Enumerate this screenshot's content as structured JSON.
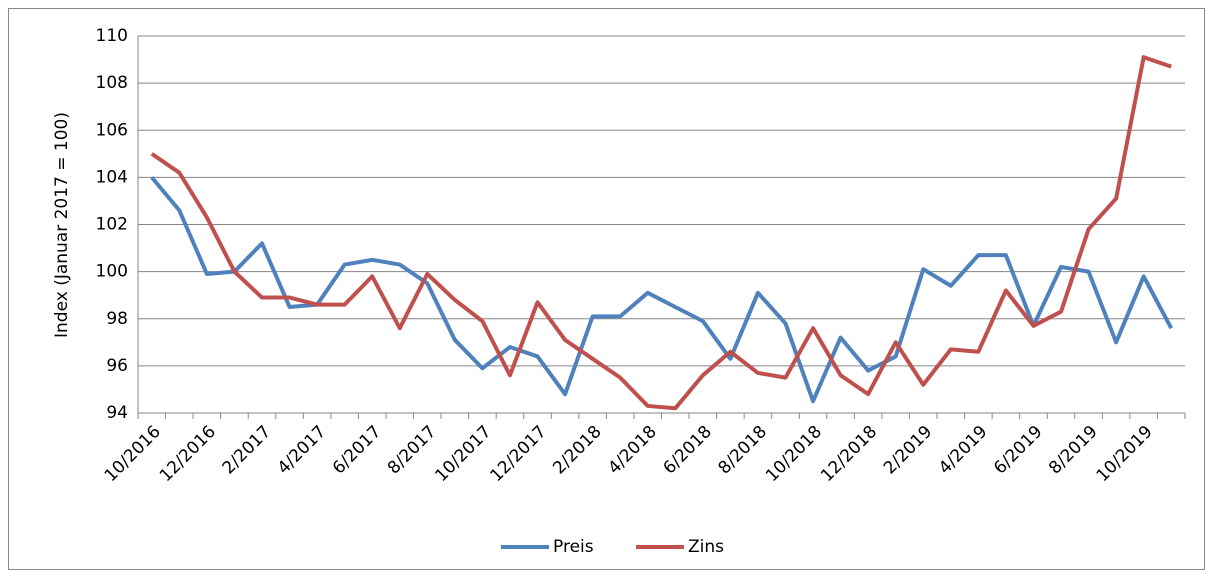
{
  "chart_data": {
    "type": "line",
    "y_label": "Index (Januar 2017 = 100)",
    "categories": [
      "10/2016",
      null,
      "12/2016",
      null,
      "2/2017",
      null,
      "4/2017",
      null,
      "6/2017",
      null,
      "8/2017",
      null,
      "10/2017",
      null,
      "12/2017",
      null,
      "2/2018",
      null,
      "4/2018",
      null,
      "6/2018",
      null,
      "8/2018",
      null,
      "10/2018",
      null,
      "12/2018",
      null,
      "2/2019",
      null,
      "4/2019",
      null,
      "6/2019",
      null,
      "8/2019",
      null,
      "10/2019",
      null
    ],
    "series": [
      {
        "name": "Preis",
        "color": "#4f81bd",
        "values": [
          104.0,
          102.6,
          99.9,
          100.0,
          101.2,
          98.5,
          98.6,
          100.3,
          100.5,
          100.3,
          99.5,
          97.1,
          95.9,
          96.8,
          96.4,
          94.8,
          98.1,
          98.1,
          99.1,
          98.5,
          97.9,
          96.3,
          99.1,
          97.8,
          94.5,
          97.2,
          95.8,
          96.4,
          100.1,
          99.4,
          100.7,
          100.7,
          97.7,
          100.2,
          100.0,
          97.0,
          99.8,
          97.6
        ]
      },
      {
        "name": "Zins",
        "color": "#c0504d",
        "values": [
          105.0,
          104.2,
          102.3,
          100.0,
          98.9,
          98.9,
          98.6,
          98.6,
          99.8,
          97.6,
          99.9,
          98.8,
          97.9,
          95.6,
          98.7,
          97.1,
          96.3,
          95.5,
          94.3,
          94.2,
          95.6,
          96.6,
          95.7,
          95.5,
          97.6,
          95.6,
          94.8,
          97.0,
          95.2,
          96.7,
          96.6,
          99.2,
          97.7,
          98.3,
          101.8,
          103.1,
          109.1,
          108.7
        ]
      }
    ],
    "ylim": [
      94,
      110
    ],
    "yticks": [
      94,
      96,
      98,
      100,
      102,
      104,
      106,
      108,
      110
    ],
    "grid": true,
    "legend": "bottom"
  }
}
